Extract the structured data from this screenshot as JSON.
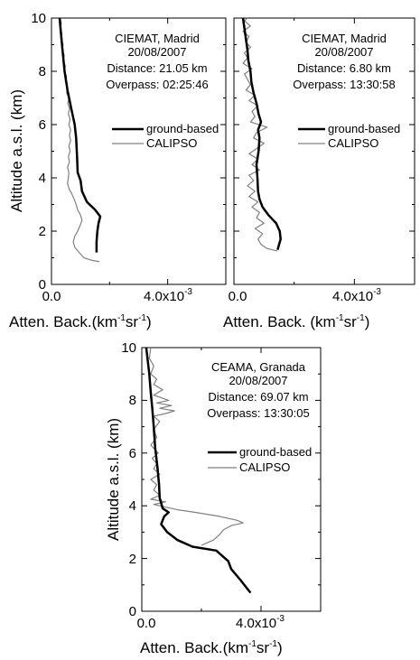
{
  "chart_data": [
    {
      "type": "line",
      "annotation_lines": [
        "CIEMAT, Madrid",
        "20/08/2007",
        "Distance: 21.05 km",
        "Overpass: 02:25:46"
      ],
      "xlabel": "Atten. Back.(km⁻¹sr⁻¹)",
      "xlabel_parts": {
        "pre": "Atten. Back.(km",
        "exp1": "-1",
        "mid": "sr",
        "exp2": "-1",
        "post": ")"
      },
      "ylabel": "Altitude a.s.l. (km)",
      "xlim": [
        0,
        0.006
      ],
      "ylim": [
        0,
        10
      ],
      "x_ticks": [
        {
          "value": 0.0,
          "label": "0.0"
        },
        {
          "value": 0.004,
          "label": "4.0x10",
          "exp": "-3"
        }
      ],
      "y_ticks": [
        0,
        2,
        4,
        6,
        8,
        10
      ],
      "legend_position": "right-middle",
      "series": [
        {
          "name": "ground-based",
          "color": "#000000",
          "width": 2.5,
          "points": [
            [
              0.00155,
              1.2
            ],
            [
              0.00155,
              1.6
            ],
            [
              0.00158,
              2.0
            ],
            [
              0.00162,
              2.3
            ],
            [
              0.00168,
              2.55
            ],
            [
              0.0015,
              2.8
            ],
            [
              0.00122,
              3.1
            ],
            [
              0.00105,
              3.5
            ],
            [
              0.001,
              3.9
            ],
            [
              0.0009,
              4.2
            ],
            [
              0.00088,
              4.8
            ],
            [
              0.00085,
              5.5
            ],
            [
              0.0008,
              6.0
            ],
            [
              0.00068,
              6.6
            ],
            [
              0.00055,
              7.3
            ],
            [
              0.00045,
              8.0
            ],
            [
              0.00038,
              8.8
            ],
            [
              0.00032,
              9.5
            ],
            [
              0.00028,
              10.0
            ]
          ]
        },
        {
          "name": "CALIPSO",
          "color": "#808080",
          "width": 1.2,
          "points": [
            [
              0.00165,
              0.85
            ],
            [
              0.0014,
              0.9
            ],
            [
              0.00112,
              1.0
            ],
            [
              0.00095,
              1.2
            ],
            [
              0.0008,
              1.4
            ],
            [
              0.00075,
              1.6
            ],
            [
              0.0008,
              1.8
            ],
            [
              0.0009,
              2.0
            ],
            [
              0.00098,
              2.2
            ],
            [
              0.00105,
              2.4
            ],
            [
              0.001,
              2.6
            ],
            [
              0.0009,
              2.8
            ],
            [
              0.00085,
              3.0
            ],
            [
              0.00078,
              3.2
            ],
            [
              0.0007,
              3.4
            ],
            [
              0.0006,
              3.6
            ],
            [
              0.00055,
              3.8
            ],
            [
              0.00058,
              4.0
            ],
            [
              0.0006,
              4.2
            ],
            [
              0.00055,
              4.4
            ],
            [
              0.00062,
              4.6
            ],
            [
              0.00058,
              4.8
            ],
            [
              0.00064,
              5.0
            ],
            [
              0.0006,
              5.2
            ],
            [
              0.00066,
              5.4
            ],
            [
              0.00062,
              5.6
            ],
            [
              0.00066,
              5.8
            ],
            [
              0.0006,
              6.0
            ],
            [
              0.00064,
              6.2
            ],
            [
              0.00058,
              6.4
            ],
            [
              0.00062,
              6.6
            ],
            [
              0.00056,
              6.8
            ],
            [
              0.0006,
              7.0
            ],
            [
              0.00052,
              7.2
            ],
            [
              0.00056,
              7.4
            ],
            [
              0.00048,
              7.6
            ],
            [
              0.00052,
              7.8
            ],
            [
              0.00044,
              8.0
            ],
            [
              0.00048,
              8.2
            ],
            [
              0.0004,
              8.4
            ],
            [
              0.00044,
              8.6
            ],
            [
              0.00036,
              8.8
            ],
            [
              0.0004,
              9.0
            ],
            [
              0.00032,
              9.2
            ],
            [
              0.00036,
              9.4
            ],
            [
              0.0003,
              9.6
            ],
            [
              0.00034,
              9.8
            ],
            [
              0.0003,
              10.0
            ]
          ]
        }
      ]
    },
    {
      "type": "line",
      "annotation_lines": [
        "CIEMAT, Madrid",
        "20/08/2007",
        "Distance: 6.80 km",
        "Overpass: 13:30:58"
      ],
      "xlabel": "Atten. Back. (km⁻¹sr⁻¹)",
      "xlabel_parts": {
        "pre": "Atten. Back. (km",
        "exp1": "-1",
        "mid": "sr",
        "exp2": "-1",
        "post": ")"
      },
      "xlim": [
        0,
        0.006
      ],
      "ylim": [
        0,
        10
      ],
      "x_ticks": [
        {
          "value": 0.0,
          "label": "0.0"
        },
        {
          "value": 0.004,
          "label": "4.0x10",
          "exp": "-3"
        }
      ],
      "y_ticks": [
        0,
        2,
        4,
        6,
        8,
        10
      ],
      "legend_position": "right-middle",
      "series": [
        {
          "name": "ground-based",
          "color": "#000000",
          "width": 2.5,
          "points": [
            [
              0.00145,
              1.3
            ],
            [
              0.00155,
              1.7
            ],
            [
              0.00152,
              2.0
            ],
            [
              0.0014,
              2.3
            ],
            [
              0.00115,
              2.6
            ],
            [
              0.00095,
              2.9
            ],
            [
              0.00085,
              3.2
            ],
            [
              0.0008,
              3.5
            ],
            [
              0.00078,
              4.0
            ],
            [
              0.00075,
              4.5
            ],
            [
              0.00082,
              5.0
            ],
            [
              0.00085,
              5.5
            ],
            [
              0.0008,
              5.8
            ],
            [
              0.0009,
              6.1
            ],
            [
              0.00082,
              6.4
            ],
            [
              0.00075,
              6.8
            ],
            [
              0.00065,
              7.2
            ],
            [
              0.00058,
              7.6
            ],
            [
              0.00055,
              8.0
            ],
            [
              0.00048,
              8.4
            ],
            [
              0.00045,
              8.8
            ],
            [
              0.0004,
              9.2
            ],
            [
              0.00035,
              9.6
            ],
            [
              0.0003,
              10.0
            ]
          ]
        },
        {
          "name": "CALIPSO",
          "color": "#808080",
          "width": 1.2,
          "points": [
            [
              0.00145,
              1.25
            ],
            [
              0.0011,
              1.35
            ],
            [
              0.0009,
              1.5
            ],
            [
              0.0008,
              1.7
            ],
            [
              0.00095,
              1.9
            ],
            [
              0.0007,
              2.1
            ],
            [
              0.001,
              2.3
            ],
            [
              0.00075,
              2.5
            ],
            [
              0.00085,
              2.7
            ],
            [
              0.0006,
              2.9
            ],
            [
              0.0008,
              3.1
            ],
            [
              0.0005,
              3.3
            ],
            [
              0.0007,
              3.5
            ],
            [
              0.00045,
              3.7
            ],
            [
              0.00065,
              3.9
            ],
            [
              0.0005,
              4.1
            ],
            [
              0.00085,
              4.3
            ],
            [
              0.0006,
              4.5
            ],
            [
              0.0008,
              4.7
            ],
            [
              0.0005,
              4.9
            ],
            [
              0.00075,
              5.1
            ],
            [
              0.001,
              5.3
            ],
            [
              0.00065,
              5.5
            ],
            [
              0.00075,
              5.7
            ],
            [
              0.0011,
              5.9
            ],
            [
              0.00055,
              6.1
            ],
            [
              0.0007,
              6.3
            ],
            [
              0.0006,
              6.5
            ],
            [
              0.0008,
              6.7
            ],
            [
              0.0005,
              6.9
            ],
            [
              0.0007,
              7.1
            ],
            [
              0.0004,
              7.3
            ],
            [
              0.00055,
              7.5
            ],
            [
              0.00045,
              7.7
            ],
            [
              0.00035,
              7.9
            ],
            [
              0.0006,
              8.1
            ],
            [
              0.0003,
              8.3
            ],
            [
              0.00045,
              8.5
            ],
            [
              0.00035,
              8.7
            ],
            [
              0.00055,
              8.9
            ],
            [
              0.0004,
              9.1
            ],
            [
              0.0005,
              9.3
            ],
            [
              0.0003,
              9.5
            ],
            [
              0.00055,
              9.7
            ],
            [
              0.00035,
              9.9
            ],
            [
              0.00045,
              10.0
            ]
          ]
        }
      ]
    },
    {
      "type": "line",
      "annotation_lines": [
        "CEAMA, Granada",
        "20/08/2007",
        "Distance: 69.07 km",
        "Overpass: 13:30:05"
      ],
      "xlabel": "Atten. Back.(km⁻¹sr⁻¹)",
      "xlabel_parts": {
        "pre": "Atten. Back.(km",
        "exp1": "-1",
        "mid": "sr",
        "exp2": "-1",
        "post": ")"
      },
      "ylabel": "Altitude a.s.l. (km)",
      "xlim": [
        0,
        0.006
      ],
      "ylim": [
        0,
        10
      ],
      "x_ticks": [
        {
          "value": 0.0,
          "label": "0.0"
        },
        {
          "value": 0.004,
          "label": "4.0x10",
          "exp": "-3"
        }
      ],
      "y_ticks": [
        0,
        2,
        4,
        6,
        8,
        10
      ],
      "legend_position": "right-middle",
      "series": [
        {
          "name": "ground-based",
          "color": "#000000",
          "width": 2.5,
          "points": [
            [
              0.00365,
              0.7
            ],
            [
              0.0033,
              1.2
            ],
            [
              0.003,
              1.6
            ],
            [
              0.0029,
              1.9
            ],
            [
              0.0027,
              2.1
            ],
            [
              0.0025,
              2.3
            ],
            [
              0.0017,
              2.45
            ],
            [
              0.0012,
              2.7
            ],
            [
              0.00085,
              3.0
            ],
            [
              0.00065,
              3.3
            ],
            [
              0.00075,
              3.6
            ],
            [
              0.0009,
              3.75
            ],
            [
              0.0007,
              3.9
            ],
            [
              0.0006,
              4.3
            ],
            [
              0.00058,
              4.8
            ],
            [
              0.00052,
              5.5
            ],
            [
              0.00045,
              6.2
            ],
            [
              0.0004,
              7.0
            ],
            [
              0.00035,
              7.7
            ],
            [
              0.0003,
              8.3
            ],
            [
              0.00025,
              9.0
            ],
            [
              0.0002,
              9.5
            ],
            [
              0.00015,
              10.0
            ]
          ]
        },
        {
          "name": "CALIPSO",
          "color": "#808080",
          "width": 1.2,
          "points": [
            [
              0.002,
              2.5
            ],
            [
              0.0022,
              2.6
            ],
            [
              0.0024,
              2.7
            ],
            [
              0.0026,
              2.9
            ],
            [
              0.00275,
              3.1
            ],
            [
              0.003,
              3.25
            ],
            [
              0.0034,
              3.35
            ],
            [
              0.0032,
              3.45
            ],
            [
              0.0026,
              3.6
            ],
            [
              0.0018,
              3.75
            ],
            [
              0.0012,
              3.85
            ],
            [
              0.0008,
              3.95
            ],
            [
              0.0004,
              4.05
            ],
            [
              0.0008,
              4.15
            ],
            [
              0.0003,
              4.25
            ],
            [
              0.0006,
              4.4
            ],
            [
              0.0004,
              4.6
            ],
            [
              0.0005,
              4.8
            ],
            [
              0.0003,
              5.0
            ],
            [
              0.0006,
              5.2
            ],
            [
              0.0004,
              5.4
            ],
            [
              0.0005,
              5.6
            ],
            [
              0.00035,
              5.8
            ],
            [
              0.00055,
              6.0
            ],
            [
              0.0003,
              6.3
            ],
            [
              0.0005,
              6.6
            ],
            [
              0.0004,
              6.9
            ],
            [
              0.0006,
              7.2
            ],
            [
              0.0004,
              7.4
            ],
            [
              0.0008,
              7.5
            ],
            [
              0.0011,
              7.6
            ],
            [
              0.0006,
              7.7
            ],
            [
              0.001,
              7.8
            ],
            [
              0.0005,
              7.9
            ],
            [
              0.0009,
              8.0
            ],
            [
              0.0004,
              8.2
            ],
            [
              0.0007,
              8.4
            ],
            [
              0.0004,
              8.6
            ],
            [
              0.0005,
              8.8
            ],
            [
              0.0003,
              9.0
            ],
            [
              0.0004,
              9.3
            ],
            [
              0.00025,
              9.6
            ],
            [
              0.0003,
              10.0
            ]
          ]
        }
      ]
    }
  ],
  "legend_labels": {
    "ground": "ground-based",
    "calipso": "CALIPSO"
  }
}
